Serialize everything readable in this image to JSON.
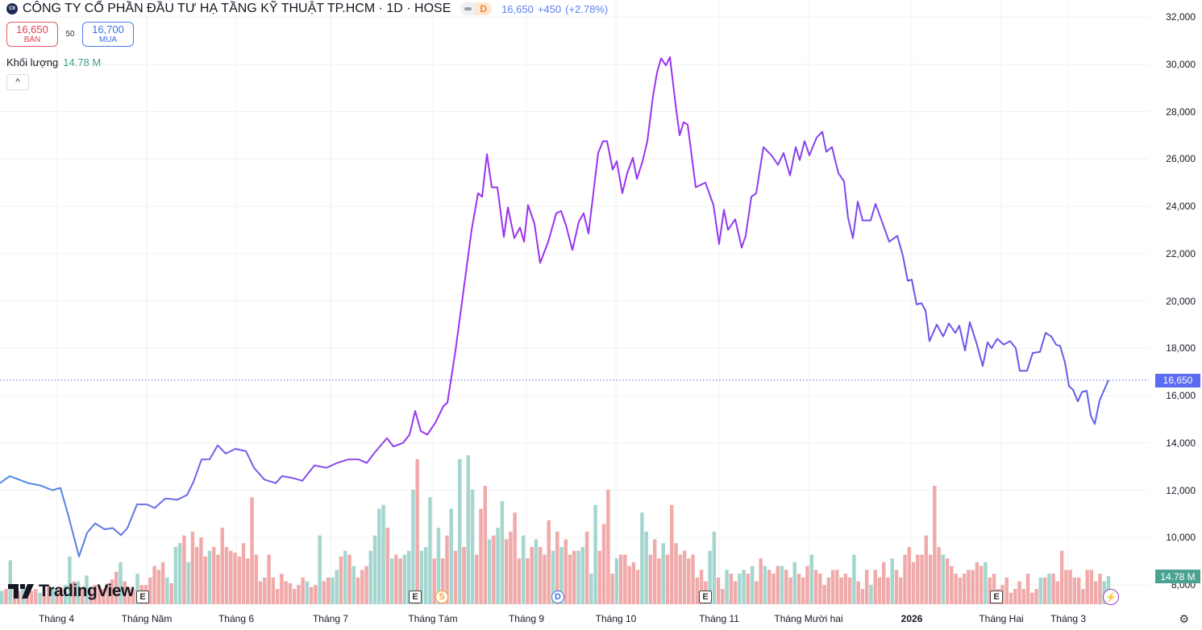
{
  "header": {
    "logo_text": "CII",
    "title": "CÔNG TY CỔ PHẦN ĐẦU TƯ HẠ TẦNG KỸ THUẬT TP.HCM · 1D · HOSE",
    "badge_d": "D",
    "last_price": "16,650",
    "change": "+450",
    "change_pct": "(+2.78%)"
  },
  "trade": {
    "sell_price": "16,650",
    "sell_label": "BÁN",
    "spread": "50",
    "buy_price": "16,700",
    "buy_label": "MUA"
  },
  "volume_legend": {
    "label": "Khối lượng",
    "value": "14.78 M"
  },
  "collapse_icon": "^",
  "brand": "TradingView",
  "colors": {
    "line_start": "#4a90e2",
    "line_mid": "#9a33ef",
    "line_end": "#5b64e8",
    "vol_up": "#a4d6cf",
    "vol_down": "#f0aaaa",
    "price_tag": "#5b6cf0",
    "vol_tag": "#4aa391"
  },
  "price_axis": [
    "32,000",
    "30,000",
    "28,000",
    "26,000",
    "24,000",
    "22,000",
    "20,000",
    "18,000",
    "16,000",
    "14,000",
    "12,000",
    "10,000",
    "8,000"
  ],
  "price_tag": "16,650",
  "volume_tag": "14.78 M",
  "time_axis": [
    {
      "label": "Tháng 4",
      "t": 14
    },
    {
      "label": "Tháng Năm",
      "t": 36.4
    },
    {
      "label": "Tháng 6",
      "t": 58.6
    },
    {
      "label": "Tháng 7",
      "t": 82
    },
    {
      "label": "Tháng Tám",
      "t": 107.4
    },
    {
      "label": "Tháng 9",
      "t": 130.6
    },
    {
      "label": "Tháng 10",
      "t": 152.8
    },
    {
      "label": "Tháng 11",
      "t": 178.4
    },
    {
      "label": "Tháng Mười hai",
      "t": 200.6
    },
    {
      "label": "2026",
      "t": 226.2,
      "bold": true
    },
    {
      "label": "Tháng Hai",
      "t": 248.4
    },
    {
      "label": "Tháng 3",
      "t": 265
    }
  ],
  "events": [
    {
      "type": "E",
      "t": 35.4
    },
    {
      "type": "E",
      "t": 103
    },
    {
      "type": "S",
      "t": 109.6
    },
    {
      "type": "D",
      "t": 138.4
    },
    {
      "type": "E",
      "t": 175
    },
    {
      "type": "E",
      "t": 247.2
    },
    {
      "type": "⚡",
      "t": 275.2
    }
  ],
  "chart_data": {
    "type": "line",
    "ylim": [
      8000,
      32000
    ],
    "last": 16650,
    "price": [
      [
        0,
        12300
      ],
      [
        2.4,
        12600
      ],
      [
        7,
        12300
      ],
      [
        10,
        12200
      ],
      [
        13,
        12000
      ],
      [
        15,
        12100
      ],
      [
        17,
        10900
      ],
      [
        19.6,
        9200
      ],
      [
        21.6,
        10200
      ],
      [
        23.6,
        10600
      ],
      [
        26,
        10350
      ],
      [
        28,
        10400
      ],
      [
        30,
        10100
      ],
      [
        31.6,
        10400
      ],
      [
        34,
        11400
      ],
      [
        36.4,
        11400
      ],
      [
        38.4,
        11250
      ],
      [
        41,
        11650
      ],
      [
        44,
        11600
      ],
      [
        46.4,
        11800
      ],
      [
        48,
        12350
      ],
      [
        50,
        13300
      ],
      [
        52,
        13300
      ],
      [
        54,
        13900
      ],
      [
        56,
        13550
      ],
      [
        58.4,
        13750
      ],
      [
        61,
        13650
      ],
      [
        63,
        12950
      ],
      [
        65.6,
        12450
      ],
      [
        68.4,
        12300
      ],
      [
        70,
        12600
      ],
      [
        73,
        12500
      ],
      [
        75,
        12400
      ],
      [
        78,
        13050
      ],
      [
        81,
        12950
      ],
      [
        83.6,
        13150
      ],
      [
        86.4,
        13300
      ],
      [
        89,
        13300
      ],
      [
        91,
        13150
      ],
      [
        93,
        13600
      ],
      [
        96,
        14200
      ],
      [
        97.6,
        13850
      ],
      [
        100,
        14000
      ],
      [
        101.6,
        14350
      ],
      [
        103,
        15350
      ],
      [
        104.4,
        14500
      ],
      [
        106,
        14350
      ],
      [
        108,
        14850
      ],
      [
        110,
        15550
      ],
      [
        111,
        15700
      ],
      [
        113,
        17900
      ],
      [
        115,
        20450
      ],
      [
        117,
        23000
      ],
      [
        118.6,
        24550
      ],
      [
        119.6,
        24400
      ],
      [
        120.8,
        26200
      ],
      [
        122,
        24800
      ],
      [
        123.4,
        24800
      ],
      [
        125,
        22700
      ],
      [
        126,
        23950
      ],
      [
        127.6,
        22650
      ],
      [
        129,
        23100
      ],
      [
        130,
        22500
      ],
      [
        131,
        24050
      ],
      [
        132.6,
        23250
      ],
      [
        134,
        21600
      ],
      [
        136,
        22500
      ],
      [
        138,
        23700
      ],
      [
        139.2,
        23800
      ],
      [
        140.4,
        23200
      ],
      [
        142,
        22150
      ],
      [
        143.6,
        23350
      ],
      [
        144.8,
        23700
      ],
      [
        146,
        22850
      ],
      [
        148.4,
        26250
      ],
      [
        149.6,
        26750
      ],
      [
        150.6,
        26750
      ],
      [
        152,
        25550
      ],
      [
        153,
        25900
      ],
      [
        154.4,
        24550
      ],
      [
        155.6,
        25400
      ],
      [
        157,
        26050
      ],
      [
        158,
        25150
      ],
      [
        159.4,
        25900
      ],
      [
        160.6,
        26750
      ],
      [
        162,
        28650
      ],
      [
        163,
        29650
      ],
      [
        164,
        30250
      ],
      [
        165.2,
        29950
      ],
      [
        166.2,
        30300
      ],
      [
        167.6,
        28300
      ],
      [
        168.6,
        27000
      ],
      [
        169.6,
        27550
      ],
      [
        170.6,
        27450
      ],
      [
        172.6,
        24800
      ],
      [
        175,
        25000
      ],
      [
        177,
        24050
      ],
      [
        178.4,
        22400
      ],
      [
        179.6,
        23850
      ],
      [
        180.6,
        23000
      ],
      [
        182.4,
        23450
      ],
      [
        184,
        22250
      ],
      [
        185,
        22750
      ],
      [
        186.4,
        24400
      ],
      [
        187.6,
        24550
      ],
      [
        189.4,
        26500
      ],
      [
        191.4,
        26150
      ],
      [
        193,
        25750
      ],
      [
        194.4,
        26250
      ],
      [
        196,
        25300
      ],
      [
        197.4,
        26500
      ],
      [
        198.4,
        25950
      ],
      [
        199.6,
        26750
      ],
      [
        200.8,
        26150
      ],
      [
        202.6,
        26900
      ],
      [
        204,
        27150
      ],
      [
        205,
        26300
      ],
      [
        206.4,
        26500
      ],
      [
        208,
        25400
      ],
      [
        209.4,
        25050
      ],
      [
        210.4,
        23500
      ],
      [
        211.6,
        22650
      ],
      [
        212.8,
        24200
      ],
      [
        214,
        23400
      ],
      [
        216,
        23400
      ],
      [
        217.2,
        24100
      ],
      [
        218.6,
        23450
      ],
      [
        220.6,
        22500
      ],
      [
        222.6,
        22750
      ],
      [
        224,
        21900
      ],
      [
        225.2,
        20850
      ],
      [
        226.2,
        20900
      ],
      [
        227.4,
        19850
      ],
      [
        228.6,
        19900
      ],
      [
        229.6,
        19600
      ],
      [
        230.6,
        18300
      ],
      [
        232.4,
        19000
      ],
      [
        234,
        18500
      ],
      [
        235.4,
        19050
      ],
      [
        237,
        18650
      ],
      [
        238,
        18950
      ],
      [
        239.4,
        17900
      ],
      [
        240.6,
        19100
      ],
      [
        242.2,
        18250
      ],
      [
        243.8,
        17250
      ],
      [
        245,
        18250
      ],
      [
        246,
        18000
      ],
      [
        247.4,
        18400
      ],
      [
        249,
        18150
      ],
      [
        250.6,
        18300
      ],
      [
        252,
        18000
      ],
      [
        253,
        17050
      ],
      [
        254.8,
        17050
      ],
      [
        256.2,
        17800
      ],
      [
        258,
        17850
      ],
      [
        259.4,
        18650
      ],
      [
        260.8,
        18500
      ],
      [
        262,
        18150
      ],
      [
        263,
        18100
      ],
      [
        264.2,
        17400
      ],
      [
        265.2,
        16400
      ],
      [
        266.2,
        16250
      ],
      [
        267.4,
        15750
      ],
      [
        268.4,
        16150
      ],
      [
        269.6,
        16200
      ],
      [
        270.6,
        15150
      ],
      [
        271.6,
        14800
      ],
      [
        272.8,
        15800
      ],
      [
        275,
        16650
      ]
    ],
    "volume_millions_signed_up_positive": [
      7,
      -8,
      23,
      -10,
      -7,
      8,
      -9,
      -7,
      -8,
      6,
      -9,
      -10,
      9,
      -8,
      -9,
      10,
      25,
      -12,
      12,
      -9,
      15,
      -8,
      -10,
      -9,
      -8,
      -11,
      -13,
      -17,
      22,
      -12,
      -9,
      -8,
      16,
      -10,
      -10,
      -14,
      -20,
      -18,
      -22,
      14,
      -11,
      30,
      32,
      -36,
      22,
      -38,
      -30,
      -35,
      -25,
      28,
      -30,
      -26,
      -40,
      -30,
      -28,
      -27,
      -25,
      -32,
      -24,
      -56,
      -26,
      -12,
      -14,
      -26,
      -14,
      -8,
      -16,
      -12,
      -11,
      -8,
      -10,
      -14,
      12,
      -9,
      -10,
      36,
      -12,
      -14,
      14,
      18,
      -25,
      28,
      -26,
      20,
      -14,
      -18,
      -20,
      28,
      36,
      50,
      52,
      -40,
      24,
      -26,
      -24,
      26,
      28,
      60,
      -76,
      28,
      30,
      56,
      -24,
      40,
      -24,
      -36,
      50,
      -28,
      76,
      -30,
      78,
      60,
      -26,
      -50,
      -62,
      34,
      -36,
      40,
      54,
      -34,
      -38,
      -48,
      -24,
      36,
      -24,
      -30,
      34,
      -30,
      -26,
      -44,
      28,
      -38,
      30,
      -34,
      -26,
      -28,
      28,
      30,
      -38,
      16,
      52,
      -28,
      -42,
      -60,
      -16,
      24,
      -26,
      -26,
      -20,
      -22,
      -18,
      48,
      38,
      -26,
      -34,
      -24,
      32,
      -26,
      -52,
      -32,
      -26,
      -28,
      -24,
      -26,
      -14,
      -18,
      -12,
      28,
      38,
      -14,
      -8,
      18,
      -16,
      -12,
      16,
      18,
      -16,
      20,
      -12,
      -24,
      20,
      -18,
      -16,
      -20,
      20,
      -18,
      -14,
      22,
      -16,
      -14,
      -20,
      26,
      -18,
      -16,
      -10,
      -14,
      -18,
      -18,
      -14,
      -16,
      -14,
      26,
      -12,
      -8,
      -18,
      10,
      -18,
      -14,
      -22,
      -14,
      24,
      -18,
      -14,
      -26,
      -30,
      -22,
      -26,
      -26,
      -36,
      -26,
      -62,
      -30,
      26,
      -24,
      -20,
      -16,
      -14,
      -16,
      -18,
      -18,
      -22,
      -20,
      22,
      -14,
      -16,
      -8,
      -10,
      -14,
      -6,
      -8,
      -12,
      -8,
      -16,
      -6,
      -8,
      14,
      -14,
      16,
      -16,
      -12,
      -28,
      -18,
      -18,
      -14,
      -14,
      -8,
      -18,
      -18,
      -12,
      -16,
      12,
      14.78
    ]
  }
}
